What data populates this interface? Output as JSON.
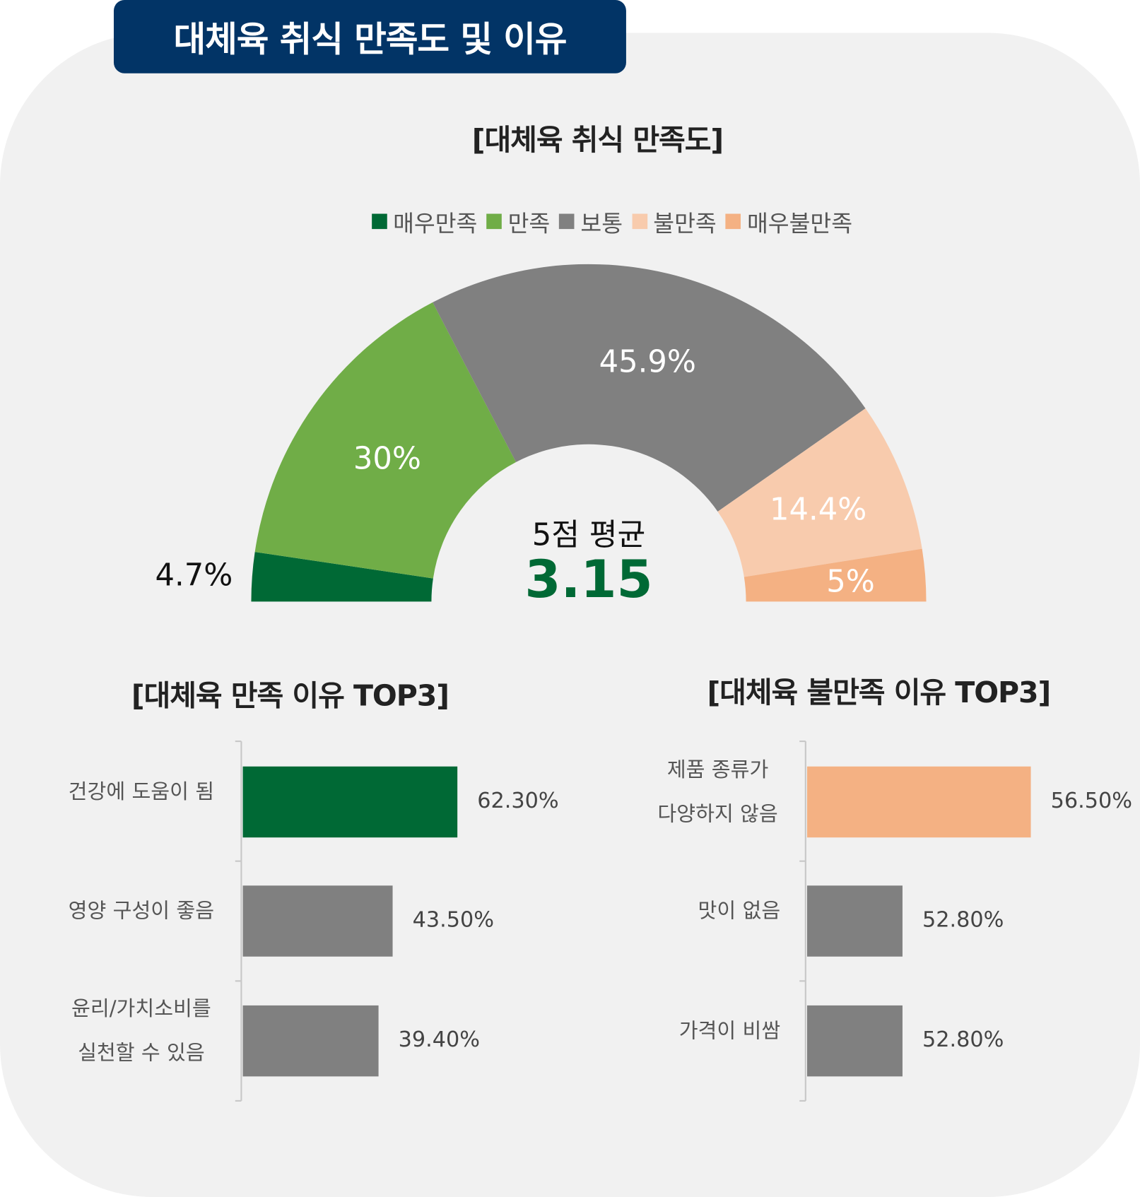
{
  "title": "대체육 취식 만족도 및 이유",
  "chart_data": [
    {
      "type": "pie",
      "subtype": "half-donut",
      "title": "[대체육 취식 만족도]",
      "legend": [
        "매우만족",
        "만족",
        "보통",
        "불만족",
        "매우불만족"
      ],
      "legend_placement": "top",
      "slices": [
        {
          "name": "매우만족",
          "value": 4.7,
          "label": "4.7%",
          "color": "#006935"
        },
        {
          "name": "만족",
          "value": 30,
          "label": "30%",
          "color": "#70ad47"
        },
        {
          "name": "보통",
          "value": 45.9,
          "label": "45.9%",
          "color": "#808080"
        },
        {
          "name": "불만족",
          "value": 14.4,
          "label": "14.4%",
          "color": "#f8cbad"
        },
        {
          "name": "매우불만족",
          "value": 5,
          "label": "5%",
          "color": "#f4b183"
        }
      ],
      "center_caption": "5점 평균",
      "center_value": "3.15"
    },
    {
      "type": "bar",
      "orientation": "horizontal",
      "title": "[대체육 만족 이유 TOP3]",
      "xlim": [
        0,
        100
      ],
      "bars": [
        {
          "label": [
            "건강에 도움이 됨"
          ],
          "value": 62.3,
          "value_label": "62.30%",
          "color": "#006935"
        },
        {
          "label": [
            "영양 구성이 좋음"
          ],
          "value": 43.5,
          "value_label": "43.50%",
          "color": "#808080"
        },
        {
          "label": [
            "윤리/가치소비를",
            "실천할 수 있음"
          ],
          "value": 39.4,
          "value_label": "39.40%",
          "color": "#808080"
        }
      ]
    },
    {
      "type": "bar",
      "orientation": "horizontal",
      "title": "[대체육 불만족 이유 TOP3]",
      "xlim": [
        50.05,
        60
      ],
      "bars": [
        {
          "label": [
            "제품 종류가",
            "다양하지 않음"
          ],
          "value": 56.5,
          "value_label": "56.50%",
          "color": "#f4b183"
        },
        {
          "label": [
            "맛이 없음"
          ],
          "value": 52.8,
          "value_label": "52.80%",
          "color": "#808080"
        },
        {
          "label": [
            "가격이 비쌈"
          ],
          "value": 52.8,
          "value_label": "52.80%",
          "color": "#808080"
        }
      ]
    }
  ]
}
